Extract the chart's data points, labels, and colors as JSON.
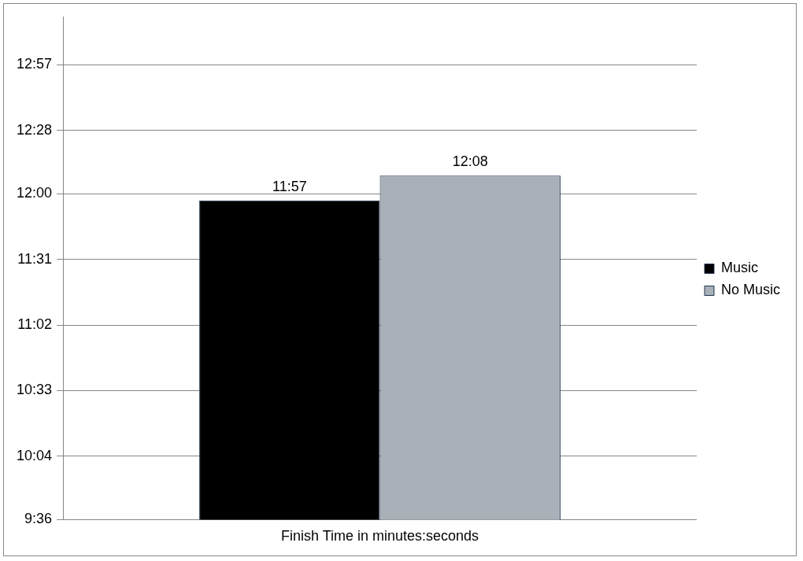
{
  "chart_data": {
    "type": "bar",
    "categories": [
      "Finish Time in minutes:seconds"
    ],
    "series": [
      {
        "name": "Music",
        "color": "#000000",
        "values": [
          717
        ],
        "value_labels": [
          "11:57"
        ]
      },
      {
        "name": "No Music",
        "color": "#a9b0b8",
        "values": [
          728
        ],
        "value_labels": [
          "12:08"
        ]
      }
    ],
    "ylim": [
      576,
      798
    ],
    "yticks": [
      {
        "value": 576,
        "label": "9:36"
      },
      {
        "value": 604,
        "label": "10:04"
      },
      {
        "value": 633,
        "label": "10:33"
      },
      {
        "value": 662,
        "label": "11:02"
      },
      {
        "value": 691,
        "label": "11:31"
      },
      {
        "value": 720,
        "label": "12:00"
      },
      {
        "value": 748,
        "label": "12:28"
      },
      {
        "value": 777,
        "label": "12:57"
      }
    ],
    "grid": "y",
    "legend": "right"
  }
}
